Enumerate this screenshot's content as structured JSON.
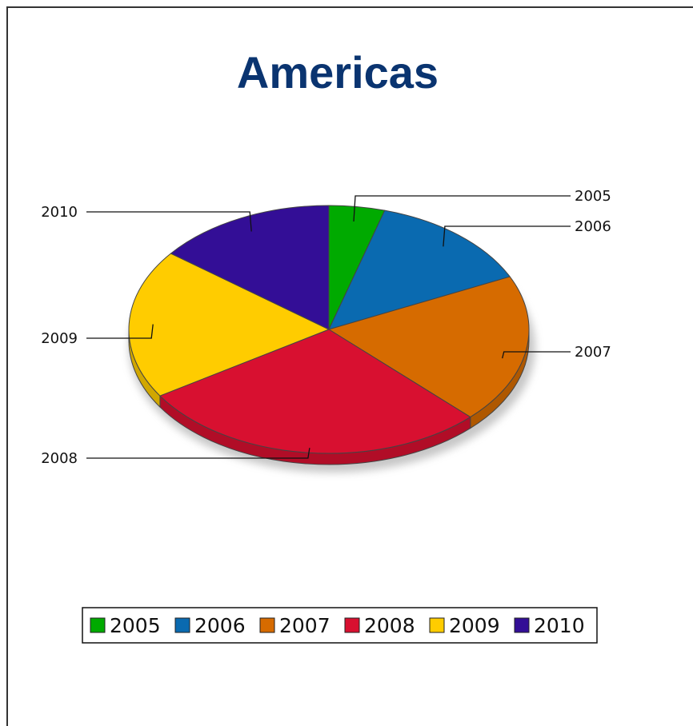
{
  "chart_data": {
    "type": "pie",
    "style": "3d-pie",
    "title": "Americas",
    "categories": [
      "2005",
      "2006",
      "2007",
      "2008",
      "2009",
      "2010"
    ],
    "values": [
      4.5,
      13.5,
      19.5,
      28.5,
      19.5,
      14.5
    ],
    "colors": [
      "#00aa00",
      "#0a6ab0",
      "#d66b00",
      "#d81030",
      "#ffcc00",
      "#330e96"
    ],
    "legend": {
      "position": "bottom",
      "entries": [
        "2005",
        "2006",
        "2007",
        "2008",
        "2009",
        "2010"
      ]
    }
  }
}
